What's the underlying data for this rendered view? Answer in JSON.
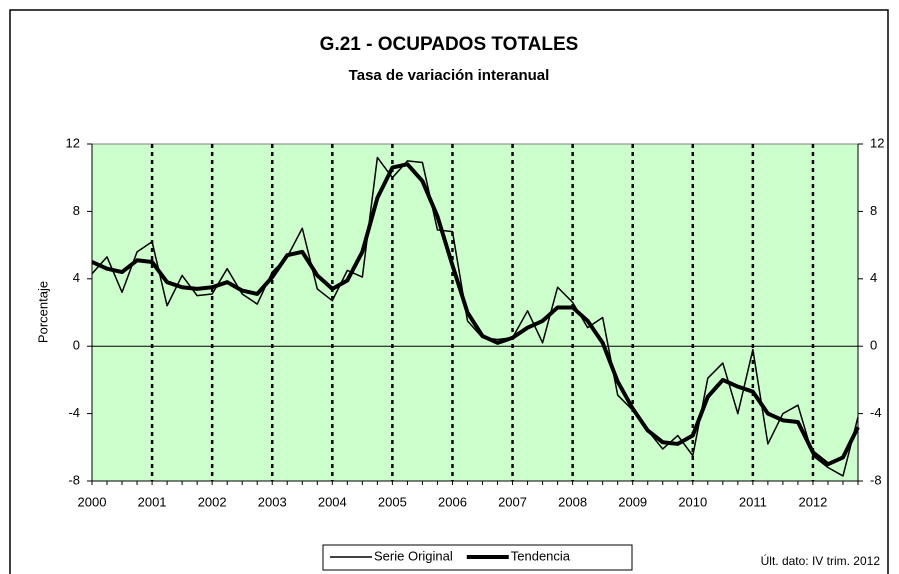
{
  "chart_data": {
    "type": "line",
    "title": "G.21 - OCUPADOS TOTALES",
    "subtitle": "Tasa de variación interanual",
    "y_label": "Porcentaje",
    "note": "Últ. dato: IV trim. 2012",
    "categories": [
      "2000",
      null,
      null,
      null,
      "2001",
      null,
      null,
      null,
      "2002",
      null,
      null,
      null,
      "2003",
      null,
      null,
      null,
      "2004",
      null,
      null,
      null,
      "2005",
      null,
      null,
      null,
      "2006",
      null,
      null,
      null,
      "2007",
      null,
      null,
      null,
      "2008",
      null,
      null,
      null,
      "2009",
      null,
      null,
      null,
      "2010",
      null,
      null,
      null,
      "2011",
      null,
      null,
      null,
      "2012",
      null,
      null,
      null
    ],
    "series": [
      {
        "name": "Serie Original",
        "color": "#000000",
        "width": 1.5,
        "values": [
          4.3,
          5.3,
          3.2,
          5.6,
          6.2,
          2.4,
          4.2,
          3.0,
          3.1,
          4.6,
          3.1,
          2.5,
          4.4,
          5.3,
          7.0,
          3.4,
          2.7,
          4.5,
          4.1,
          11.2,
          10.0,
          11.0,
          10.9,
          6.9,
          6.8,
          1.5,
          0.5,
          0.4,
          0.5,
          2.1,
          0.2,
          3.5,
          2.6,
          1.1,
          1.7,
          -2.9,
          -3.8,
          -5.0,
          -6.1,
          -5.3,
          -6.5,
          -1.9,
          -1.0,
          -4.0,
          -0.2,
          -5.8,
          -4.0,
          -3.5,
          -6.5,
          -7.2,
          -7.7,
          -4.2
        ]
      },
      {
        "name": "Tendencia",
        "color": "#000000",
        "width": 4,
        "values": [
          5.0,
          4.6,
          4.4,
          5.1,
          5.0,
          3.8,
          3.5,
          3.4,
          3.5,
          3.8,
          3.3,
          3.1,
          4.1,
          5.4,
          5.6,
          4.2,
          3.4,
          3.9,
          5.6,
          8.8,
          10.6,
          10.8,
          9.8,
          7.7,
          4.8,
          2.0,
          0.6,
          0.2,
          0.5,
          1.1,
          1.5,
          2.3,
          2.3,
          1.5,
          0.2,
          -2.1,
          -3.7,
          -5.0,
          -5.7,
          -5.8,
          -5.3,
          -3.0,
          -2.0,
          -2.4,
          -2.7,
          -4.0,
          -4.4,
          -4.5,
          -6.3,
          -7.0,
          -6.6,
          -4.8
        ]
      }
    ],
    "ylim": [
      -8,
      12
    ],
    "yticks": [
      -8,
      -4,
      0,
      4,
      8,
      12
    ],
    "y2lim": [
      -8,
      12
    ],
    "y2ticks": [
      -8,
      -4,
      0,
      4,
      8,
      12
    ],
    "plot_background": "#ccffcc",
    "year_grid": true,
    "legend": "bottom"
  }
}
